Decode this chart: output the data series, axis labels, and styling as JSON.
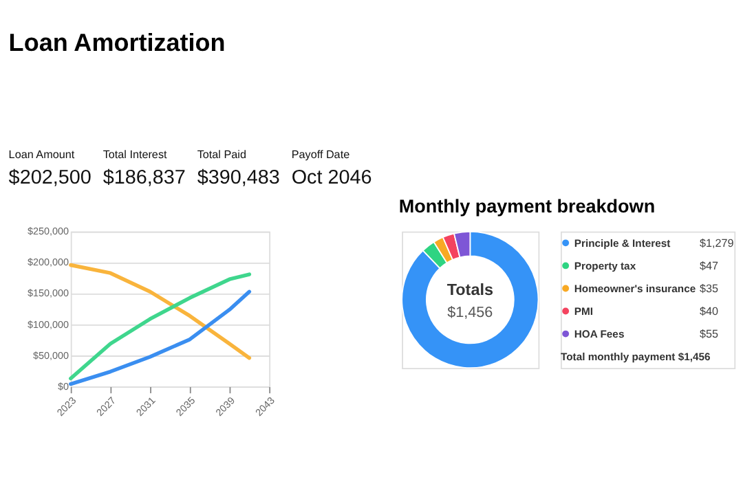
{
  "chart_data": [
    {
      "type": "line",
      "title": "Loan Amortization",
      "annotations": [
        "Loan Amount",
        "$202,500",
        "Total Interest",
        "$186,837",
        "Total Paid",
        "$390,483",
        "Payoff Date",
        "Oct 2046"
      ],
      "x": [
        2023,
        2027,
        2031,
        2035,
        2039,
        2041
      ],
      "series": [
        {
          "color": "#f9b43c",
          "values": [
            196000,
            183000,
            153000,
            114000,
            69000,
            46000
          ]
        },
        {
          "color": "#3fd68d",
          "values": [
            13000,
            69000,
            109000,
            143000,
            173000,
            181000
          ]
        },
        {
          "color": "#3a8ef0",
          "values": [
            4000,
            24000,
            48000,
            76000,
            124000,
            153000
          ]
        }
      ],
      "xlim": [
        2023,
        2043
      ],
      "xticks": [
        2023,
        2027,
        2031,
        2035,
        2039,
        2043
      ],
      "ylim": [
        0,
        250000
      ],
      "yticks": [
        {
          "value": 0,
          "label": "$0"
        },
        {
          "value": 50000,
          "label": "$50,000"
        },
        {
          "value": 100000,
          "label": "$100,000"
        },
        {
          "value": 150000,
          "label": "$150,000"
        },
        {
          "value": 200000,
          "label": "$200,000"
        },
        {
          "value": 250000,
          "label": "$250,000"
        }
      ],
      "grid": "y",
      "marker": "none",
      "line_style": "solid",
      "legend": false
    },
    {
      "type": "donut",
      "title": "Monthly payment breakdown",
      "categories": [
        "Principle & Interest",
        "Property tax",
        "Homeowner's insurance",
        "PMI",
        "HOA Fees"
      ],
      "values": [
        1279,
        47,
        35,
        40,
        55
      ],
      "value_labels": [
        "$1,279",
        "$47",
        "$35",
        "$40",
        "$55"
      ],
      "colors": [
        "#3593f7",
        "#2ed482",
        "#f8a924",
        "#f4435f",
        "#7e56d6"
      ],
      "annotations": [
        "Totals",
        "$1,456",
        "Total monthly payment $1,456"
      ],
      "legend": "right"
    }
  ]
}
